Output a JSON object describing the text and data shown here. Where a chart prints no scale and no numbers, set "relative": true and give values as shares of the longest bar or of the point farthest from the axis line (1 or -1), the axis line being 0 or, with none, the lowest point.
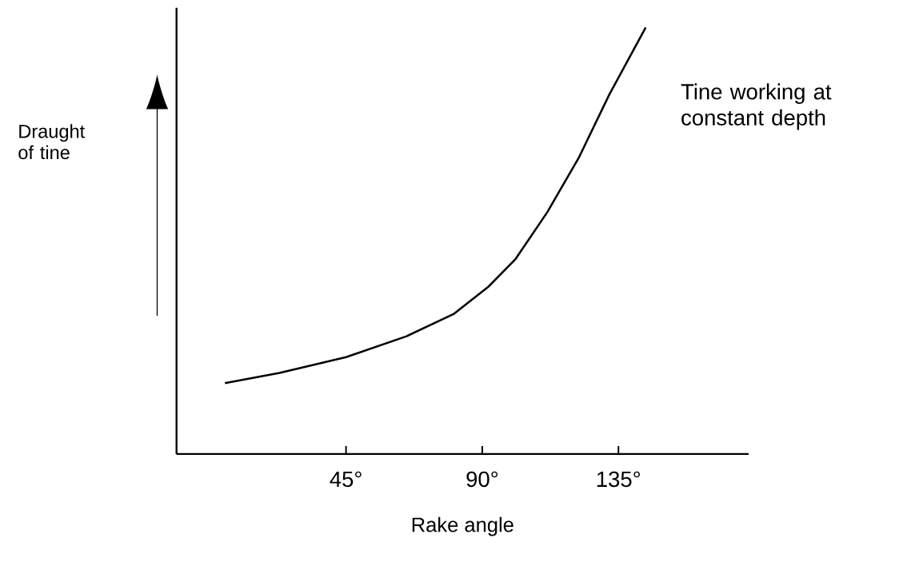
{
  "chart_data": {
    "type": "line",
    "relative": true,
    "xlabel": "Rake angle",
    "ylabel": "Draught of tine",
    "xlim": [
      -11,
      178
    ],
    "xticks": [
      {
        "value": 45,
        "label": "45°"
      },
      {
        "value": 90,
        "label": "90°"
      },
      {
        "value": 135,
        "label": "135°"
      }
    ],
    "x": [
      5,
      23,
      45,
      65,
      80.5,
      92,
      101,
      111.5,
      122,
      132,
      144
    ],
    "series": [
      {
        "color": "#000000",
        "values": [
          0.166,
          0.19,
          0.227,
          0.276,
          0.328,
          0.392,
          0.457,
          0.567,
          0.696,
          0.843,
          1.0
        ]
      }
    ],
    "annotations": [
      "Tine working at constant depth"
    ]
  }
}
